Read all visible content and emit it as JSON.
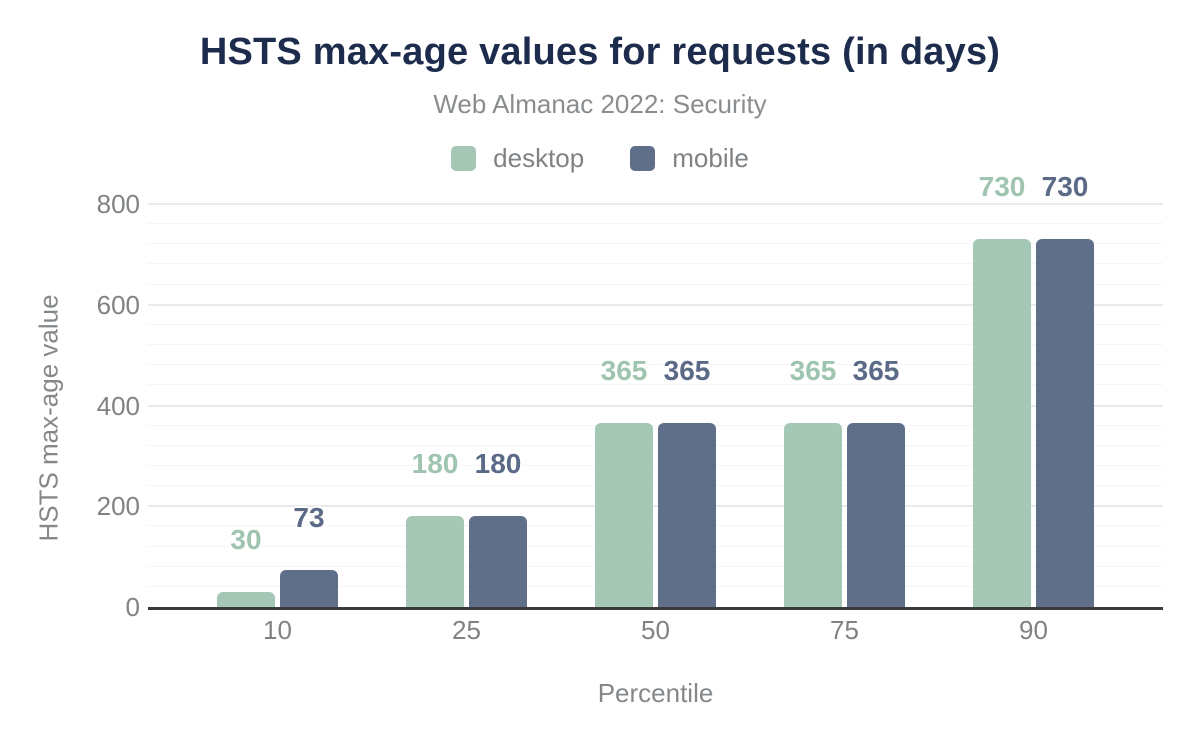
{
  "header": {
    "title": "HSTS max-age values for requests (in days)",
    "subtitle": "Web Almanac 2022: Security"
  },
  "legend": [
    {
      "label": "desktop",
      "color": "#a5c8b6"
    },
    {
      "label": "mobile",
      "color": "#5f6f8a"
    }
  ],
  "colors": {
    "title_text": "#1d2c4d",
    "subtitle_text": "#8a8d8f",
    "axis_text": "#7f8386",
    "axis_title_text": "#85888b",
    "axis_line": "#3b3b3b",
    "grid_major": "#eaeaea",
    "grid_minor": "#f5f5f5",
    "desktop": "#a5c8b6",
    "mobile": "#5f6f8a",
    "desktop_label": "#9fc4b0",
    "mobile_label": "#5b6b87"
  },
  "chart_data": {
    "type": "bar",
    "title": "HSTS max-age values for requests (in days)",
    "subtitle": "Web Almanac 2022: Security",
    "categories": [
      "10",
      "25",
      "50",
      "75",
      "90"
    ],
    "series": [
      {
        "name": "desktop",
        "color": "#a5c8b6",
        "label_color": "#9fc4b0",
        "values": [
          30,
          180,
          365,
          365,
          730
        ]
      },
      {
        "name": "mobile",
        "color": "#5f6f8a",
        "label_color": "#5b6b87",
        "values": [
          73,
          180,
          365,
          365,
          730
        ]
      }
    ],
    "xlabel": "Percentile",
    "ylabel": "HSTS max-age value",
    "ylim": [
      0,
      800
    ],
    "yticks": [
      0,
      200,
      400,
      600,
      800
    ],
    "minor_grid_step": 40,
    "grid": true,
    "legend_position": "top",
    "data_labels": true
  }
}
